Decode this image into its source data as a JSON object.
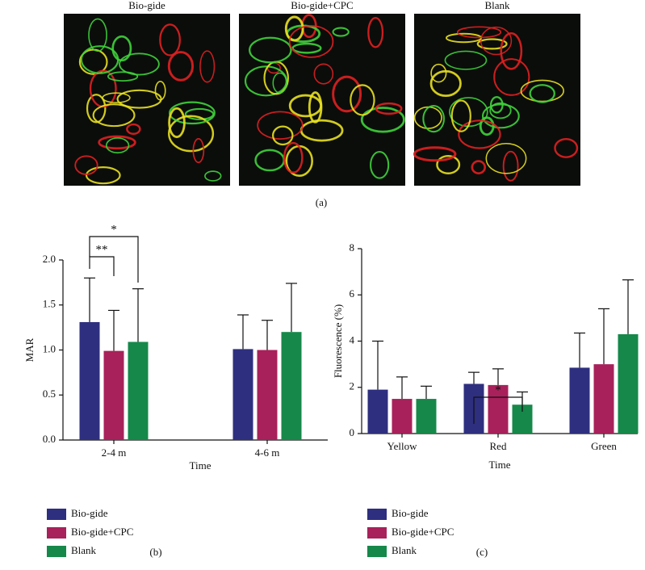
{
  "images": {
    "labels": [
      "Bio-gide",
      "Bio-gide+CPC",
      "Blank"
    ],
    "caption": "(a)"
  },
  "chart_data": [
    {
      "type": "bar",
      "caption": "(b)",
      "x_label": "Time",
      "y_label": "MAR",
      "categories": [
        "2-4 m",
        "4-6 m"
      ],
      "series": [
        {
          "name": "Bio-gide",
          "color": "#2e2f7f",
          "values": [
            1.31,
            1.01
          ],
          "errors": [
            0.49,
            0.38
          ]
        },
        {
          "name": "Bio-gide+CPC",
          "color": "#a8215a",
          "values": [
            0.99,
            1.0
          ],
          "errors": [
            0.45,
            0.33
          ]
        },
        {
          "name": "Blank",
          "color": "#16884a",
          "values": [
            1.09,
            1.2
          ],
          "errors": [
            0.59,
            0.54
          ]
        }
      ],
      "ylim": [
        0,
        2
      ],
      "yticks": [
        {
          "value": 0,
          "label": "0.0"
        },
        0.5,
        {
          "value": 1,
          "label": "1.0"
        },
        1.5,
        {
          "value": 2,
          "label": "2.0"
        }
      ],
      "annotations": [
        "**",
        "*"
      ]
    },
    {
      "type": "bar",
      "caption": "(c)",
      "x_label": "Time",
      "y_label": "Fluorescence (%)",
      "categories": [
        "Yellow",
        "Red",
        "Green"
      ],
      "series": [
        {
          "name": "Bio-gide",
          "color": "#2e2f7f",
          "values": [
            1.9,
            2.15,
            2.85
          ],
          "errors": [
            2.1,
            0.5,
            1.5
          ]
        },
        {
          "name": "Bio-gide+CPC",
          "color": "#a8215a",
          "values": [
            1.5,
            2.1,
            3.0
          ],
          "errors": [
            0.95,
            0.7,
            2.4
          ]
        },
        {
          "name": "Blank",
          "color": "#16884a",
          "values": [
            1.5,
            1.25,
            4.3
          ],
          "errors": [
            0.55,
            0.55,
            2.35
          ]
        }
      ],
      "ylim": [
        0,
        8
      ],
      "yticks": [
        0,
        2,
        4,
        6,
        8
      ],
      "annotations": [
        "*"
      ]
    }
  ]
}
